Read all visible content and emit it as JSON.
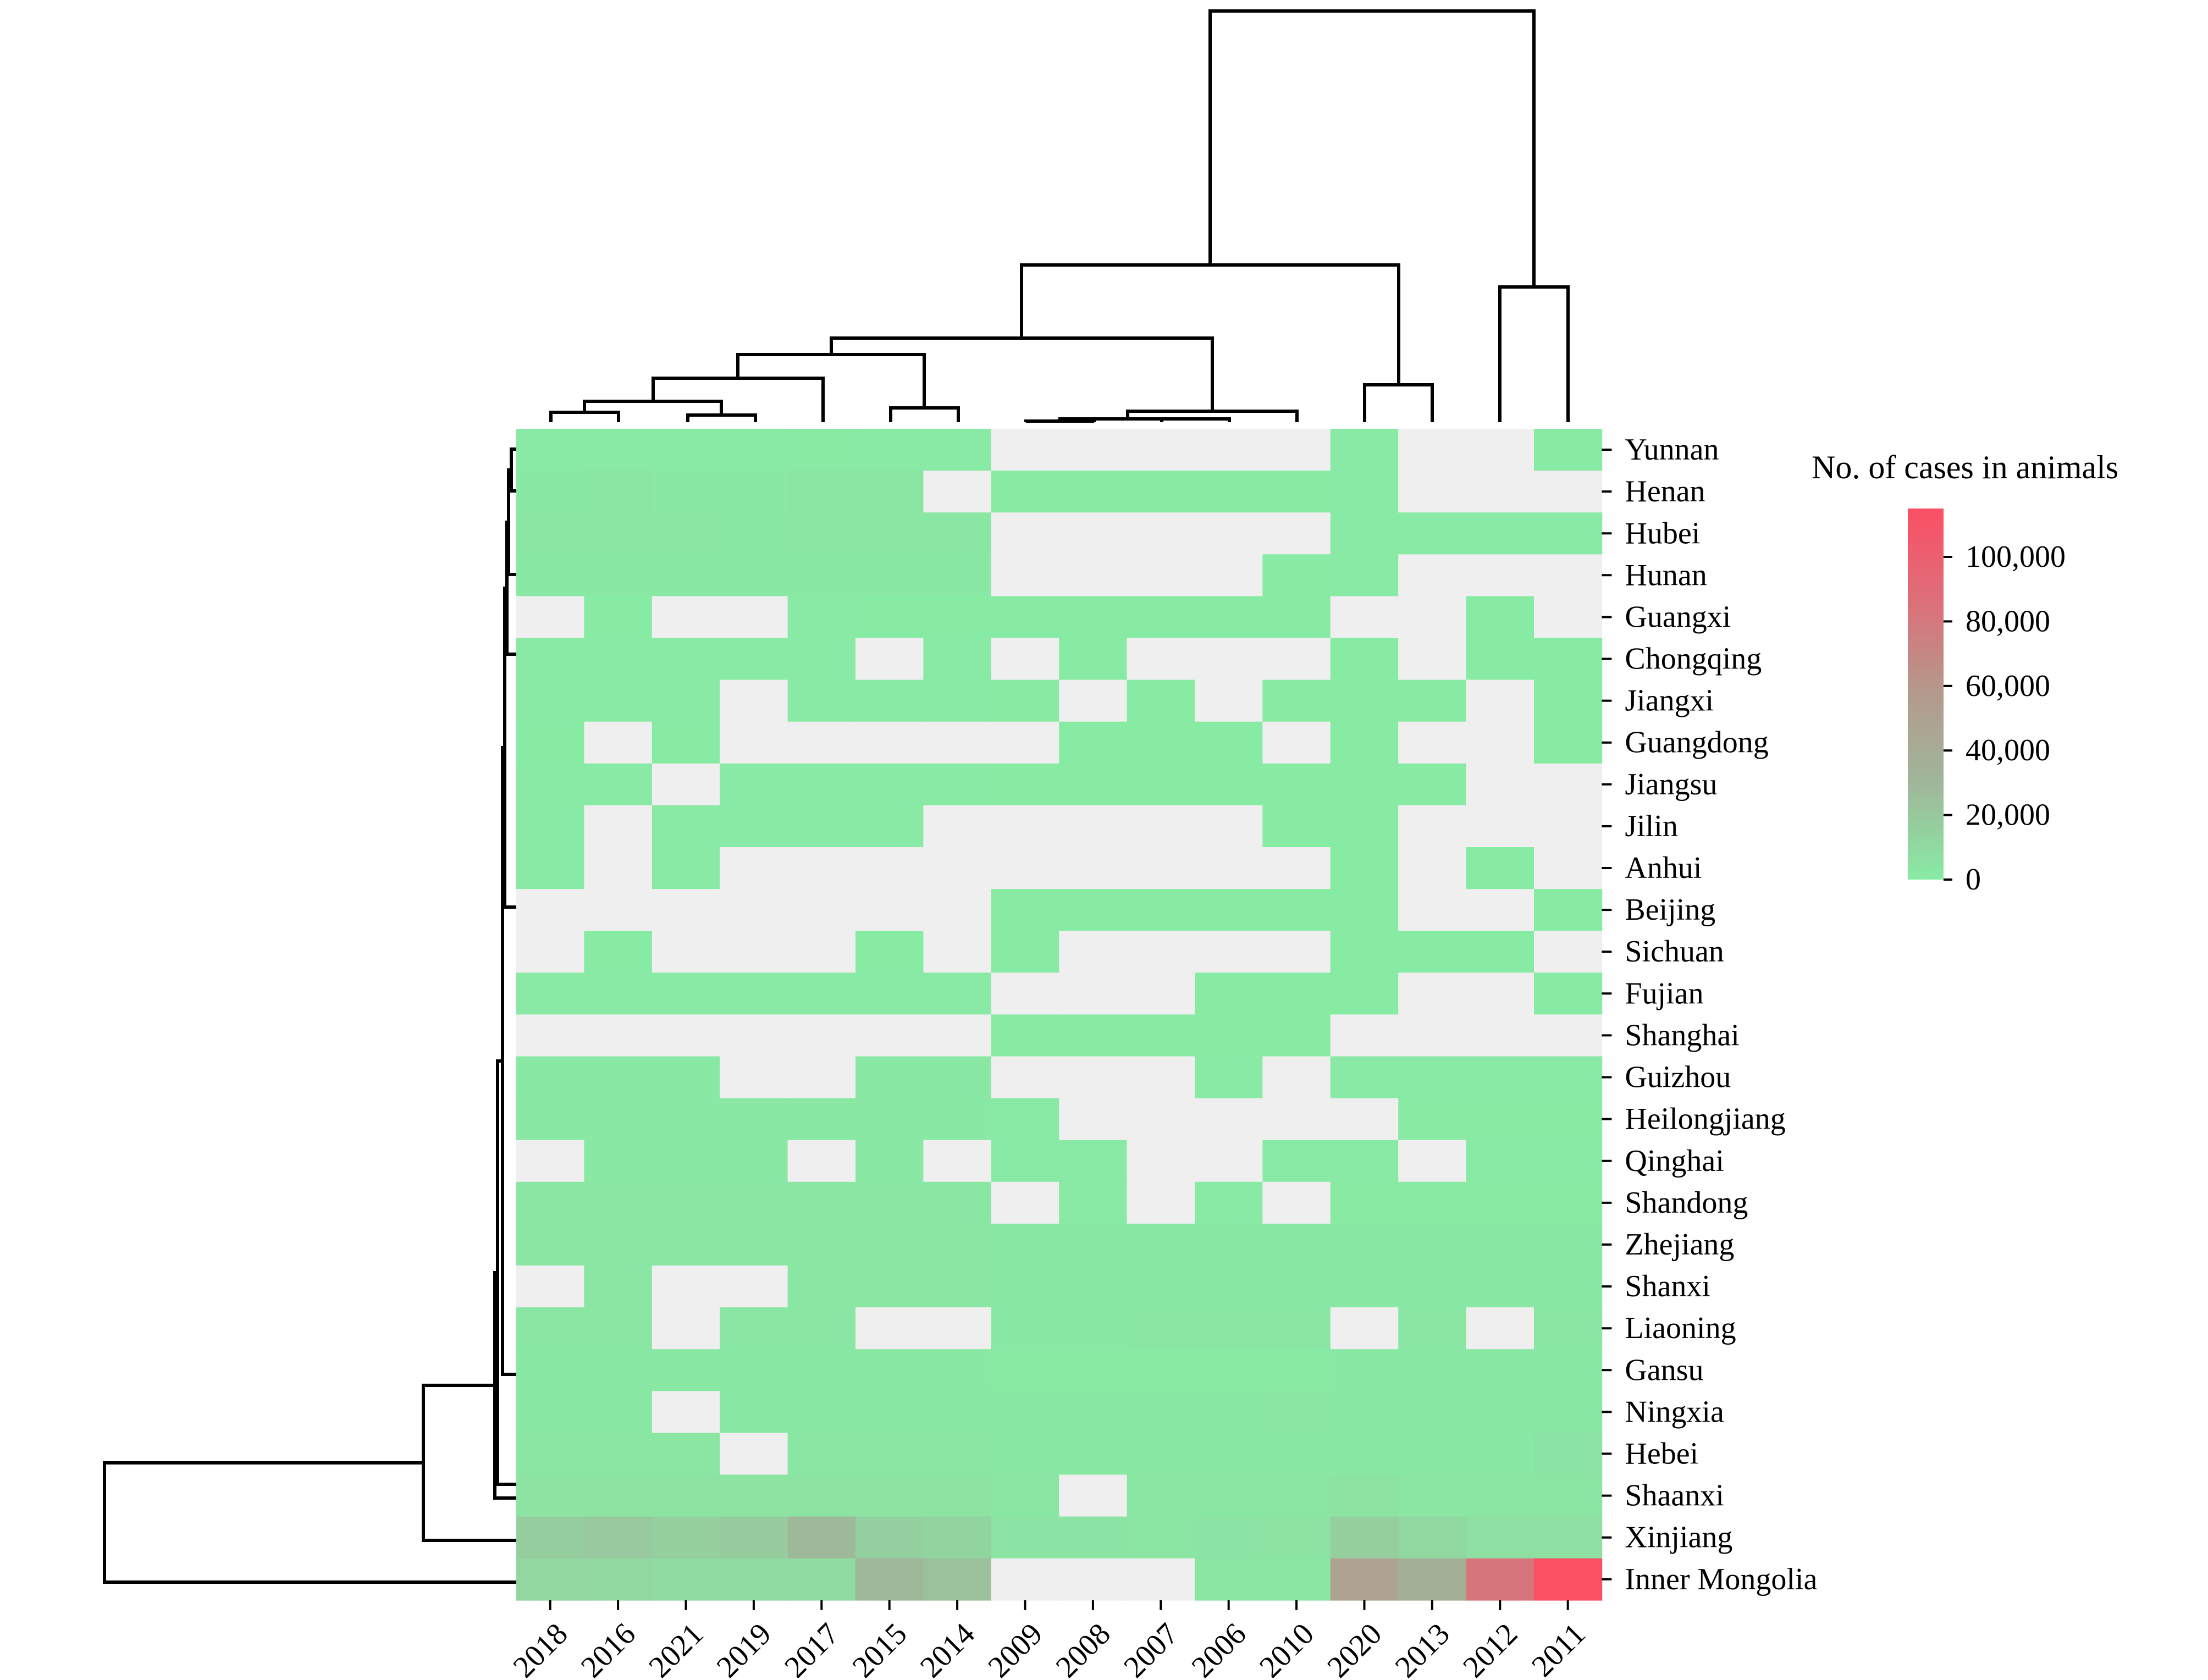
{
  "chart_data": {
    "type": "heatmap",
    "colorbar": {
      "title": "No. of cases in animals",
      "ticks": [
        0,
        20000,
        40000,
        60000,
        80000,
        100000
      ],
      "tick_labels": [
        "0",
        "20,000",
        "40,000",
        "60,000",
        "80,000",
        "100,000"
      ],
      "vmin": 0,
      "vmax": 115000,
      "colors": [
        "#88eba4",
        "#9fb89a",
        "#b39a8c",
        "#dd6f7a",
        "#fb4f64"
      ]
    },
    "missing_color": "#efefef",
    "columns": [
      "2018",
      "2016",
      "2021",
      "2019",
      "2017",
      "2015",
      "2014",
      "2009",
      "2008",
      "2007",
      "2006",
      "2010",
      "2020",
      "2013",
      "2012",
      "2011"
    ],
    "rows": [
      "Yunnan",
      "Henan",
      "Hubei",
      "Hunan",
      "Guangxi",
      "Chongqing",
      "Jiangxi",
      "Guangdong",
      "Jiangsu",
      "Jilin",
      "Anhui",
      "Beijing",
      "Sichuan",
      "Fujian",
      "Shanghai",
      "Guizhou",
      "Heilongjiang",
      "Qinghai",
      "Shandong",
      "Zhejiang",
      "Shanxi",
      "Liaoning",
      "Gansu",
      "Ningxia",
      "Hebei",
      "Shaanxi",
      "Xinjiang",
      "Inner Mongolia"
    ],
    "values": [
      [
        500,
        600,
        500,
        500,
        700,
        600,
        500,
        null,
        null,
        null,
        null,
        null,
        300,
        null,
        null,
        200
      ],
      [
        1500,
        2500,
        1500,
        1200,
        2500,
        2000,
        null,
        200,
        200,
        200,
        200,
        200,
        300,
        null,
        null,
        null
      ],
      [
        2500,
        3000,
        2000,
        1500,
        3500,
        2500,
        2000,
        null,
        null,
        null,
        null,
        null,
        500,
        500,
        500,
        500
      ],
      [
        1000,
        1500,
        1000,
        1000,
        1200,
        1000,
        1000,
        null,
        null,
        null,
        null,
        200,
        300,
        null,
        null,
        null
      ],
      [
        null,
        200,
        null,
        null,
        300,
        200,
        200,
        100,
        100,
        100,
        100,
        100,
        null,
        null,
        100,
        null
      ],
      [
        300,
        300,
        300,
        300,
        300,
        null,
        300,
        null,
        100,
        null,
        null,
        null,
        200,
        null,
        100,
        100
      ],
      [
        300,
        300,
        300,
        null,
        300,
        300,
        300,
        100,
        null,
        100,
        null,
        100,
        200,
        200,
        null,
        100
      ],
      [
        200,
        null,
        200,
        null,
        null,
        null,
        null,
        null,
        100,
        100,
        100,
        null,
        200,
        null,
        null,
        100
      ],
      [
        400,
        400,
        null,
        400,
        400,
        400,
        400,
        200,
        200,
        200,
        200,
        200,
        200,
        200,
        null,
        null
      ],
      [
        300,
        null,
        300,
        300,
        300,
        300,
        null,
        null,
        null,
        null,
        null,
        100,
        100,
        null,
        null,
        null
      ],
      [
        300,
        null,
        300,
        null,
        null,
        null,
        null,
        null,
        null,
        null,
        null,
        null,
        100,
        null,
        100,
        null
      ],
      [
        null,
        null,
        null,
        null,
        null,
        null,
        null,
        100,
        100,
        100,
        100,
        100,
        100,
        null,
        null,
        100
      ],
      [
        null,
        200,
        null,
        null,
        null,
        200,
        null,
        100,
        null,
        null,
        null,
        null,
        200,
        200,
        200,
        null
      ],
      [
        300,
        300,
        300,
        300,
        300,
        300,
        300,
        null,
        null,
        null,
        100,
        100,
        100,
        null,
        null,
        100
      ],
      [
        null,
        null,
        null,
        null,
        null,
        null,
        null,
        50,
        50,
        50,
        50,
        50,
        null,
        null,
        null,
        null
      ],
      [
        1000,
        1000,
        1000,
        null,
        null,
        1000,
        1000,
        null,
        null,
        null,
        400,
        null,
        500,
        500,
        500,
        500
      ],
      [
        1500,
        1500,
        1500,
        1500,
        1500,
        1500,
        1500,
        500,
        null,
        null,
        null,
        null,
        null,
        800,
        800,
        800
      ],
      [
        null,
        1000,
        1000,
        1000,
        null,
        1000,
        null,
        300,
        300,
        null,
        null,
        300,
        500,
        null,
        500,
        500
      ],
      [
        2000,
        2000,
        2000,
        2000,
        2000,
        2000,
        2000,
        null,
        500,
        null,
        500,
        null,
        800,
        800,
        800,
        800
      ],
      [
        2500,
        2500,
        2500,
        2500,
        2500,
        2500,
        2500,
        1000,
        1000,
        1000,
        1000,
        1000,
        1200,
        1200,
        1200,
        1200
      ],
      [
        null,
        2000,
        null,
        null,
        2000,
        2000,
        2000,
        1000,
        1000,
        1000,
        1500,
        1000,
        1500,
        1500,
        1500,
        1500
      ],
      [
        2500,
        2500,
        null,
        2500,
        2500,
        null,
        null,
        1500,
        1500,
        2000,
        2500,
        2000,
        null,
        2000,
        null,
        2000
      ],
      [
        1500,
        1500,
        1500,
        1500,
        1500,
        1500,
        1500,
        800,
        800,
        800,
        800,
        800,
        1000,
        1000,
        1000,
        1000
      ],
      [
        1500,
        1500,
        null,
        1500,
        1500,
        1500,
        1500,
        1000,
        1000,
        1000,
        1500,
        2500,
        1200,
        1200,
        1200,
        1200
      ],
      [
        2500,
        2500,
        2500,
        null,
        2500,
        2500,
        2500,
        1500,
        1500,
        1500,
        1500,
        1500,
        1800,
        1800,
        1800,
        4000
      ],
      [
        4500,
        4500,
        4500,
        4500,
        4500,
        4500,
        4500,
        2500,
        null,
        2500,
        2500,
        2500,
        4500,
        3500,
        3500,
        3500
      ],
      [
        17000,
        20000,
        16000,
        18000,
        28000,
        15000,
        13000,
        4000,
        4000,
        3500,
        4000,
        4500,
        16000,
        11000,
        7000,
        6000
      ],
      [
        12000,
        11000,
        9000,
        9000,
        9000,
        28000,
        24000,
        null,
        null,
        null,
        3000,
        3000,
        50000,
        36000,
        82000,
        115000
      ]
    ]
  }
}
